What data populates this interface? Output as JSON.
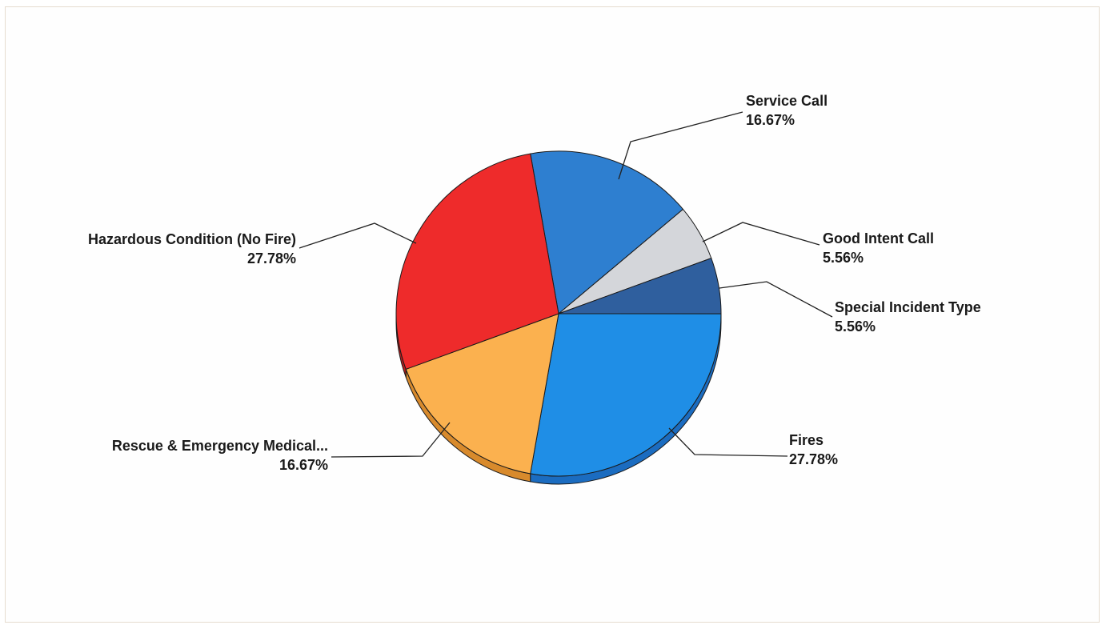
{
  "chart_data": {
    "type": "pie",
    "title": "",
    "legend": "none",
    "slices": [
      {
        "name": "Service Call",
        "value": 16.67,
        "label": "16.67%",
        "color": "#2e7fd0",
        "side_color": "#1e5fa8"
      },
      {
        "name": "Good Intent Call",
        "value": 5.56,
        "label": "5.56%",
        "color": "#d4d6da",
        "side_color": "#a8aaae"
      },
      {
        "name": "Special Incident Type",
        "value": 5.56,
        "label": "5.56%",
        "color": "#2f5f9e",
        "side_color": "#1f4277"
      },
      {
        "name": "Fires",
        "value": 27.78,
        "label": "27.78%",
        "color": "#1f8ee6",
        "side_color": "#1b6cc0"
      },
      {
        "name": "Rescue & Emergency Medical...",
        "value": 16.67,
        "label": "16.67%",
        "color": "#fbb14f",
        "side_color": "#d88a2c"
      },
      {
        "name": "Hazardous Condition (No Fire)",
        "value": 27.78,
        "label": "27.78%",
        "color": "#ee2b2b",
        "side_color": "#b81c1c"
      }
    ]
  }
}
